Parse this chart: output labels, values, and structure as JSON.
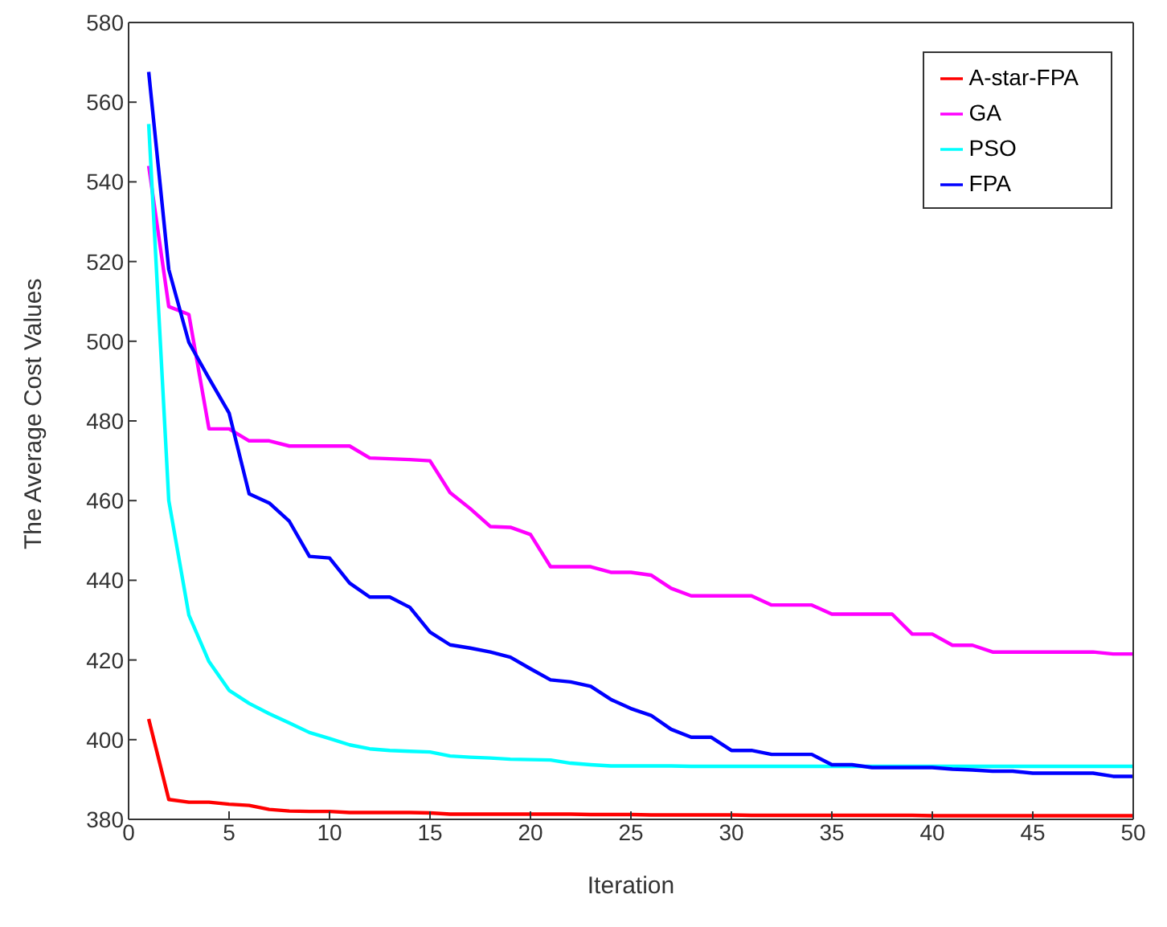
{
  "chart_data": {
    "type": "line",
    "xlabel": "Iteration",
    "ylabel": "The Average Cost Values",
    "x": [
      1,
      2,
      3,
      4,
      5,
      6,
      7,
      8,
      9,
      10,
      11,
      12,
      13,
      14,
      15,
      16,
      17,
      18,
      19,
      20,
      21,
      22,
      23,
      24,
      25,
      26,
      27,
      28,
      29,
      30,
      31,
      32,
      33,
      34,
      35,
      36,
      37,
      38,
      39,
      40,
      41,
      42,
      43,
      44,
      45,
      46,
      47,
      48,
      49,
      50
    ],
    "series": [
      {
        "name": "A-star-FPA",
        "color": "#ff0000",
        "values": [
          405.2,
          385,
          384.3,
          384.3,
          383.8,
          383.5,
          382.5,
          382.1,
          382,
          382,
          381.7,
          381.7,
          381.7,
          381.7,
          381.6,
          381.3,
          381.3,
          381.3,
          381.3,
          381.3,
          381.3,
          381.3,
          381.2,
          381.2,
          381.2,
          381.1,
          381.1,
          381.1,
          381.1,
          381.1,
          381,
          381,
          381,
          381,
          381,
          381,
          381,
          381,
          381,
          380.9,
          380.9,
          380.9,
          380.9,
          380.9,
          380.9,
          380.9,
          380.9,
          380.9,
          380.9,
          380.9
        ]
      },
      {
        "name": "GA",
        "color": "#ff00ff",
        "values": [
          544,
          508.7,
          506.7,
          478,
          478,
          475,
          475,
          473.7,
          473.7,
          473.7,
          473.7,
          470.7,
          470.5,
          470.3,
          470,
          462,
          458,
          453.5,
          453.3,
          451.5,
          443.4,
          443.4,
          443.4,
          442,
          442,
          441.3,
          438,
          436.1,
          436.1,
          436.1,
          436.1,
          433.8,
          433.8,
          433.8,
          431.5,
          431.5,
          431.5,
          431.5,
          426.5,
          426.5,
          423.7,
          423.7,
          422,
          422,
          422,
          422,
          422,
          422,
          421.5,
          421.5
        ]
      },
      {
        "name": "PSO",
        "color": "#00ffff",
        "values": [
          554.5,
          460,
          431.3,
          419.6,
          412.4,
          409.1,
          406.5,
          404.2,
          401.8,
          400.3,
          398.7,
          397.7,
          397.3,
          397.1,
          396.9,
          395.9,
          395.6,
          395.4,
          395.1,
          395,
          394.9,
          394.1,
          393.7,
          393.4,
          393.4,
          393.4,
          393.4,
          393.3,
          393.3,
          393.3,
          393.3,
          393.3,
          393.3,
          393.3,
          393.3,
          393.3,
          393.3,
          393.3,
          393.3,
          393.3,
          393.3,
          393.3,
          393.3,
          393.3,
          393.3,
          393.3,
          393.3,
          393.3,
          393.3,
          393.3
        ]
      },
      {
        "name": "FPA",
        "color": "#0000ff",
        "values": [
          567.6,
          518,
          499.7,
          490.7,
          482,
          461.7,
          459.4,
          454.8,
          446,
          445.6,
          439.3,
          435.8,
          435.8,
          433.2,
          427,
          423.8,
          423,
          422,
          420.7,
          417.8,
          415,
          414.5,
          413.4,
          410.1,
          407.8,
          406.1,
          402.6,
          400.6,
          400.6,
          397.3,
          397.3,
          396.3,
          396.3,
          396.3,
          393.7,
          393.7,
          393,
          393,
          393,
          393,
          392.6,
          392.4,
          392.1,
          392.1,
          391.6,
          391.6,
          391.6,
          391.6,
          390.8,
          390.8
        ]
      }
    ],
    "xlim": [
      0,
      50
    ],
    "xticks": [
      0,
      5,
      10,
      15,
      20,
      25,
      30,
      35,
      40,
      45,
      50
    ],
    "ylim": [
      380,
      580
    ],
    "yticks": [
      380,
      400,
      420,
      440,
      460,
      480,
      500,
      520,
      540,
      560,
      580
    ],
    "grid": false,
    "legend": "top right",
    "marker": "none",
    "line_style": "solid"
  }
}
